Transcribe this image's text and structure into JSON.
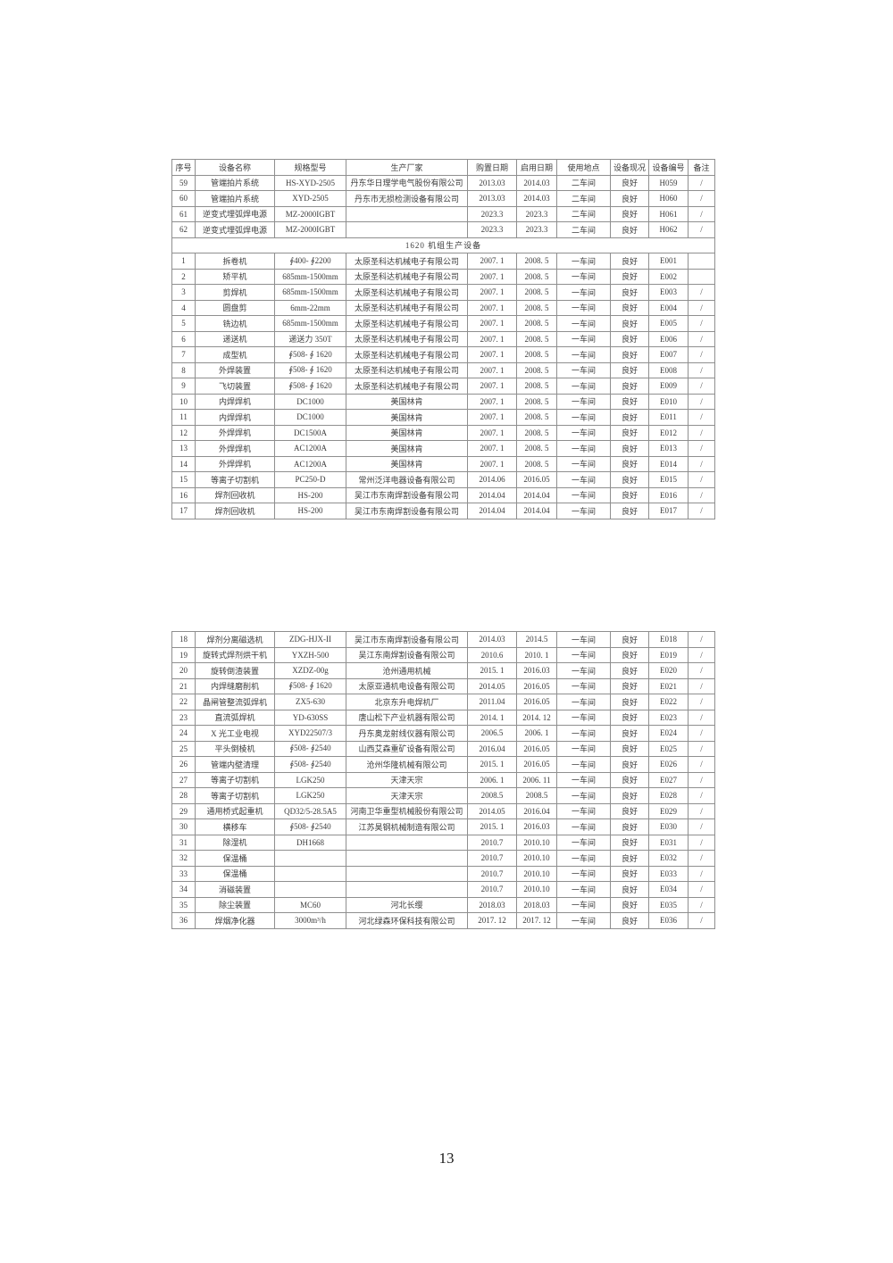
{
  "page": {
    "number": "13"
  },
  "table1": {
    "section_title": "1620 机组生产设备",
    "columns": [
      "序号",
      "设备名称",
      "规格型号",
      "生产厂家",
      "购置日期",
      "启用日期",
      "使用地点",
      "设备现况",
      "设备编号",
      "备注"
    ],
    "pre_rows": [
      [
        "59",
        "管端拍片系统",
        "HS-XYD-2505",
        "丹东华日理学电气股份有限公司",
        "2013.03",
        "2014.03",
        "二车间",
        "良好",
        "H059",
        "/"
      ],
      [
        "60",
        "管端拍片系统",
        "XYD-2505",
        "丹东市无损检测设备有限公司",
        "2013.03",
        "2014.03",
        "二车间",
        "良好",
        "H060",
        "/"
      ],
      [
        "61",
        "逆变式埋弧焊电源",
        "MZ-2000IGBT",
        "",
        "2023.3",
        "2023.3",
        "二车间",
        "良好",
        "H061",
        "/"
      ],
      [
        "62",
        "逆变式埋弧焊电源",
        "MZ-2000IGBT",
        "",
        "2023.3",
        "2023.3",
        "二车间",
        "良好",
        "H062",
        "/"
      ]
    ],
    "rows": [
      [
        "1",
        "拆卷机",
        "∮400- ∮2200",
        "太原圣科达机械电子有限公司",
        "2007. 1",
        "2008. 5",
        "一车间",
        "良好",
        "E001",
        ""
      ],
      [
        "2",
        "矫平机",
        "685mm-1500mm",
        "太原圣科达机械电子有限公司",
        "2007. 1",
        "2008. 5",
        "一车间",
        "良好",
        "E002",
        ""
      ],
      [
        "3",
        "剪焊机",
        "685mm-1500mm",
        "太原圣科达机械电子有限公司",
        "2007. 1",
        "2008. 5",
        "一车间",
        "良好",
        "E003",
        "/"
      ],
      [
        "4",
        "圆盘剪",
        "6mm-22mm",
        "太原圣科达机械电子有限公司",
        "2007. 1",
        "2008. 5",
        "一车间",
        "良好",
        "E004",
        "/"
      ],
      [
        "5",
        "铣边机",
        "685mm-1500mm",
        "太原圣科达机械电子有限公司",
        "2007. 1",
        "2008. 5",
        "一车间",
        "良好",
        "E005",
        "/"
      ],
      [
        "6",
        "递送机",
        "递送力 350T",
        "太原圣科达机械电子有限公司",
        "2007. 1",
        "2008. 5",
        "一车间",
        "良好",
        "E006",
        "/"
      ],
      [
        "7",
        "成型机",
        "∮508- ∮ 1620",
        "太原圣科达机械电子有限公司",
        "2007. 1",
        "2008. 5",
        "一车间",
        "良好",
        "E007",
        "/"
      ],
      [
        "8",
        "外焊装置",
        "∮508- ∮ 1620",
        "太原圣科达机械电子有限公司",
        "2007. 1",
        "2008. 5",
        "一车间",
        "良好",
        "E008",
        "/"
      ],
      [
        "9",
        "飞切装置",
        "∮508- ∮ 1620",
        "太原圣科达机械电子有限公司",
        "2007. 1",
        "2008. 5",
        "一车间",
        "良好",
        "E009",
        "/"
      ],
      [
        "10",
        "内焊焊机",
        "DC1000",
        "美国林肯",
        "2007. 1",
        "2008. 5",
        "一车间",
        "良好",
        "E010",
        "/"
      ],
      [
        "11",
        "内焊焊机",
        "DC1000",
        "美国林肯",
        "2007. 1",
        "2008. 5",
        "一车间",
        "良好",
        "E011",
        "/"
      ],
      [
        "12",
        "外焊焊机",
        "DC1500A",
        "美国林肯",
        "2007. 1",
        "2008. 5",
        "一车间",
        "良好",
        "E012",
        "/"
      ],
      [
        "13",
        "外焊焊机",
        "AC1200A",
        "美国林肯",
        "2007. 1",
        "2008. 5",
        "一车间",
        "良好",
        "E013",
        "/"
      ],
      [
        "14",
        "外焊焊机",
        "AC1200A",
        "美国林肯",
        "2007. 1",
        "2008. 5",
        "一车间",
        "良好",
        "E014",
        "/"
      ],
      [
        "15",
        "等离子切割机",
        "PC250-D",
        "常州泛洋电器设备有限公司",
        "2014.06",
        "2016.05",
        "一车间",
        "良好",
        "E015",
        "/"
      ],
      [
        "16",
        "焊剂回收机",
        "HS-200",
        "吴江市东南焊割设备有限公司",
        "2014.04",
        "2014.04",
        "一车间",
        "良好",
        "E016",
        "/"
      ],
      [
        "17",
        "焊剂回收机",
        "HS-200",
        "吴江市东南焊割设备有限公司",
        "2014.04",
        "2014.04",
        "一车间",
        "良好",
        "E017",
        "/"
      ]
    ]
  },
  "table2": {
    "rows": [
      [
        "18",
        "焊剂分离磁选机",
        "ZDG-HJX-II",
        "吴江市东南焊割设备有限公司",
        "2014.03",
        "2014.5",
        "一车间",
        "良好",
        "E018",
        "/"
      ],
      [
        "19",
        "旋转式焊剂烘干机",
        "YXZH-500",
        "吴江东南焊割设备有限公司",
        "2010.6",
        "2010. 1",
        "一车间",
        "良好",
        "E019",
        "/"
      ],
      [
        "20",
        "旋转倒渣装置",
        "XZDZ-00g",
        "沧州通用机械",
        "2015. 1",
        "2016.03",
        "一车间",
        "良好",
        "E020",
        "/"
      ],
      [
        "21",
        "内焊缝磨削机",
        "∮508- ∮ 1620",
        "太原亚通机电设备有限公司",
        "2014.05",
        "2016.05",
        "一车间",
        "良好",
        "E021",
        "/"
      ],
      [
        "22",
        "晶闸管整流弧焊机",
        "ZX5-630",
        "北京东升电焊机厂",
        "2011.04",
        "2016.05",
        "一车间",
        "良好",
        "E022",
        "/"
      ],
      [
        "23",
        "直流弧焊机",
        "YD-630SS",
        "唐山松下产业机器有限公司",
        "2014. 1",
        "2014. 12",
        "一车间",
        "良好",
        "E023",
        "/"
      ],
      [
        "24",
        "X 光工业电视",
        "XYD22507/3",
        "丹东奥龙射线仪器有限公司",
        "2006.5",
        "2006. 1",
        "一车间",
        "良好",
        "E024",
        "/"
      ],
      [
        "25",
        "平头倒棱机",
        "∮508- ∮2540",
        "山西艾森重矿设备有限公司",
        "2016.04",
        "2016.05",
        "一车间",
        "良好",
        "E025",
        "/"
      ],
      [
        "26",
        "管端内壁清理",
        "∮508- ∮2540",
        "沧州华隆机械有限公司",
        "2015. 1",
        "2016.05",
        "一车间",
        "良好",
        "E026",
        "/"
      ],
      [
        "27",
        "等离子切割机",
        "LGK250",
        "天津天宗",
        "2006. 1",
        "2006. 11",
        "一车间",
        "良好",
        "E027",
        "/"
      ],
      [
        "28",
        "等离子切割机",
        "LGK250",
        "天津天宗",
        "2008.5",
        "2008.5",
        "一车间",
        "良好",
        "E028",
        "/"
      ],
      [
        "29",
        "通用桥式起重机",
        "QD32/5-28.5A5",
        "河南卫华重型机械股份有限公司",
        "2014.05",
        "2016.04",
        "一车间",
        "良好",
        "E029",
        "/"
      ],
      [
        "30",
        "横移车",
        "∮508- ∮2540",
        "江苏昊钢机械制造有限公司",
        "2015. 1",
        "2016.03",
        "一车间",
        "良好",
        "E030",
        "/"
      ],
      [
        "31",
        "除湿机",
        "DH1668",
        "",
        "2010.7",
        "2010.10",
        "一车间",
        "良好",
        "E031",
        "/"
      ],
      [
        "32",
        "保温桶",
        "",
        "",
        "2010.7",
        "2010.10",
        "一车间",
        "良好",
        "E032",
        "/"
      ],
      [
        "33",
        "保温桶",
        "",
        "",
        "2010.7",
        "2010.10",
        "一车间",
        "良好",
        "E033",
        "/"
      ],
      [
        "34",
        "消磁装置",
        "",
        "",
        "2010.7",
        "2010.10",
        "一车间",
        "良好",
        "E034",
        "/"
      ],
      [
        "35",
        "除尘装置",
        "MC60",
        "河北长缨",
        "2018.03",
        "2018.03",
        "一车间",
        "良好",
        "E035",
        "/"
      ],
      [
        "36",
        "焊烟净化器",
        "3000m³/h",
        "河北绿森环保科技有限公司",
        "2017. 12",
        "2017. 12",
        "一车间",
        "良好",
        "E036",
        "/"
      ]
    ]
  }
}
